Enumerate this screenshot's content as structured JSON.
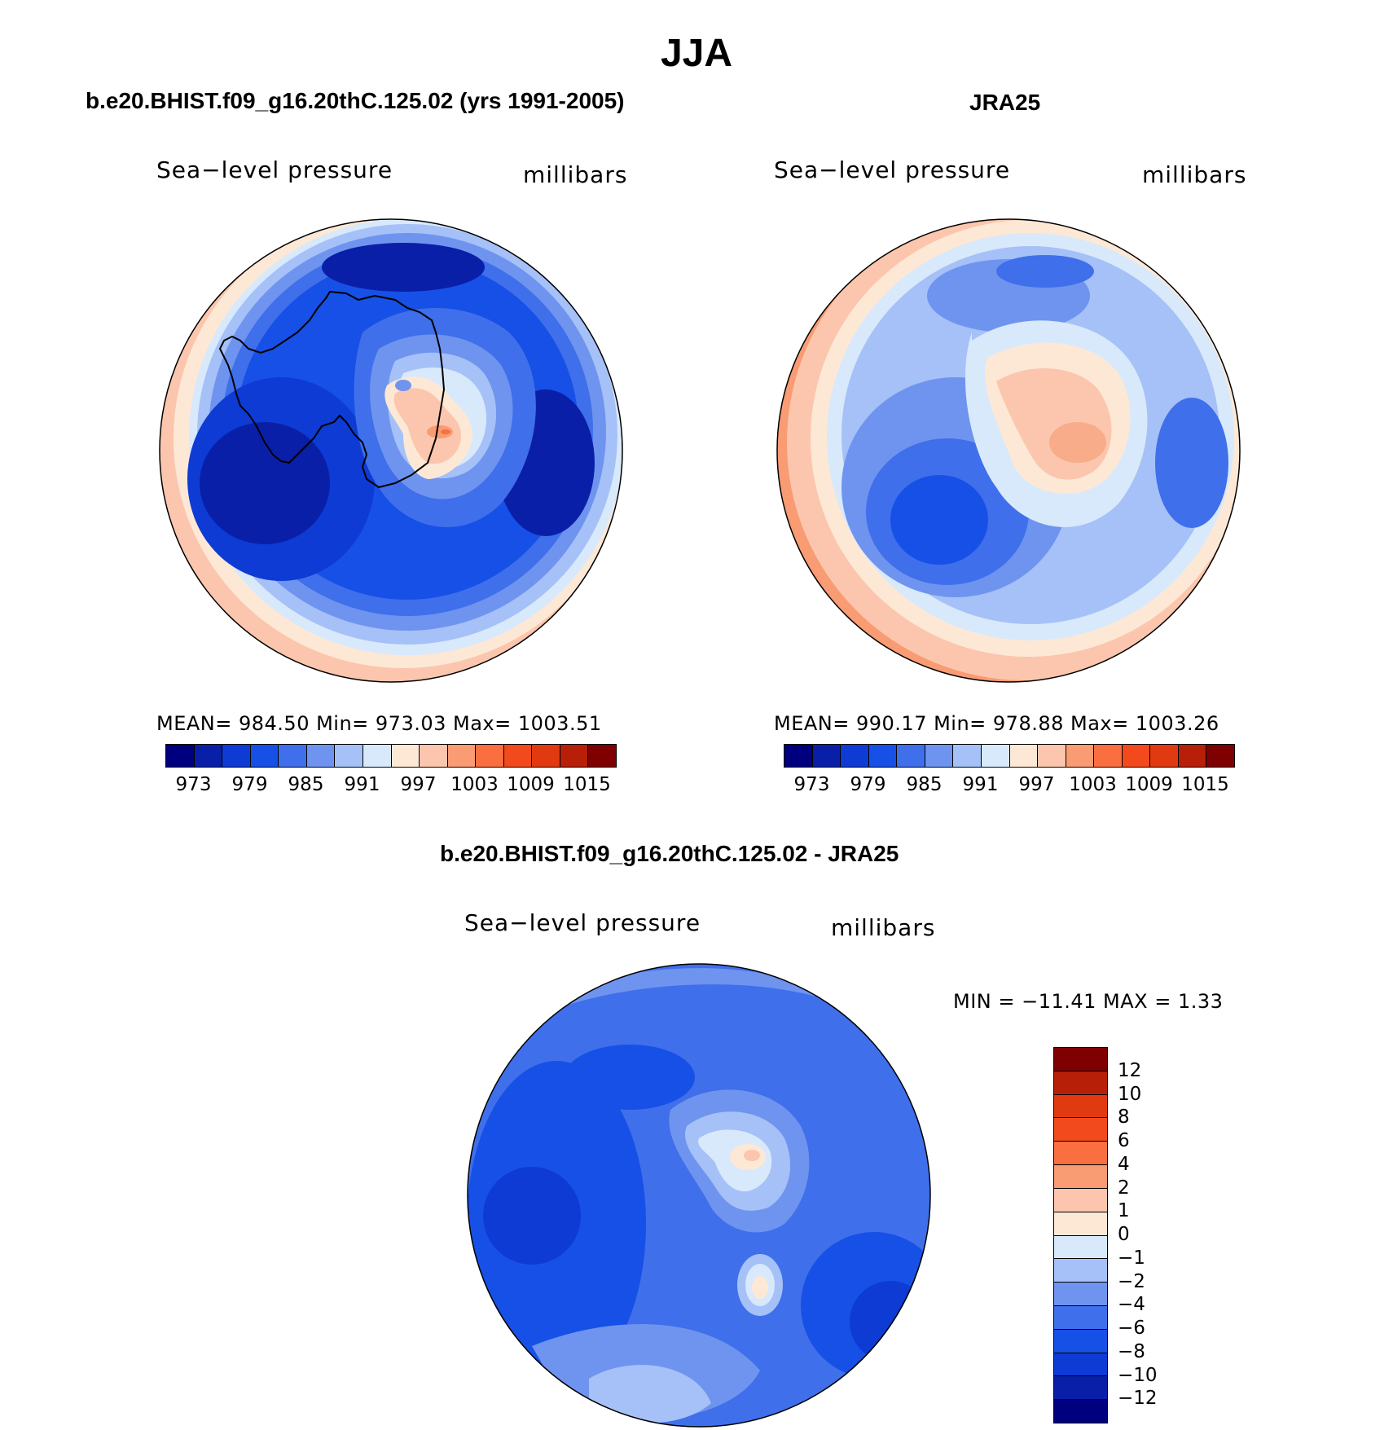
{
  "title": "JJA",
  "panels": {
    "model": {
      "title": "b.e20.BHIST.f09_g16.20thC.125.02 (yrs 1991-2005)",
      "field_label": "Sea−level pressure",
      "units": "millibars",
      "stats": "MEAN=  984.50    Min=  973.03    Max=  1003.51"
    },
    "obs": {
      "title": "JRA25",
      "field_label": "Sea−level pressure",
      "units": "millibars",
      "stats": "MEAN=  990.17    Min=  978.88    Max=  1003.26"
    },
    "diff": {
      "title": "b.e20.BHIST.f09_g16.20thC.125.02 - JRA25",
      "field_label": "Sea−level pressure",
      "units": "millibars",
      "stats": "MIN  =  −11.41  MAX  =     1.33"
    }
  },
  "abs_colorbar": {
    "colors": [
      "#00007f",
      "#0a1fa8",
      "#0d3bd4",
      "#1750e6",
      "#3f6fea",
      "#6f94ef",
      "#a5c1f7",
      "#d8e9fb",
      "#fde8d6",
      "#fbc6ad",
      "#f99b73",
      "#fa6f3f",
      "#f24a1c",
      "#e13a10",
      "#b81f08",
      "#7f0000"
    ],
    "tick_labels": [
      "973",
      "979",
      "985",
      "991",
      "997",
      "1003",
      "1009",
      "1015"
    ]
  },
  "diff_colorbar": {
    "colors": [
      "#7f0000",
      "#b81f08",
      "#e13a10",
      "#f24a1c",
      "#fa6f3f",
      "#f99b73",
      "#fbc6ad",
      "#fde8d6",
      "#d8e9fb",
      "#a5c1f7",
      "#6f94ef",
      "#3f6fea",
      "#1750e6",
      "#0d3bd4",
      "#0a1fa8",
      "#00007f"
    ],
    "tick_labels": [
      "12",
      "10",
      "8",
      "6",
      "4",
      "2",
      "1",
      "0",
      "−1",
      "−2",
      "−4",
      "−6",
      "−8",
      "−10",
      "−12"
    ]
  }
}
